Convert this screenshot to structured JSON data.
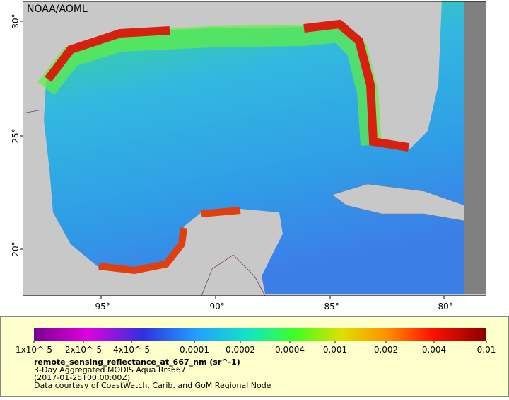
{
  "map": {
    "attribution": "NOAA/AOML",
    "lat_ticks": [
      "30°",
      "25°",
      "20°"
    ],
    "lon_ticks": [
      "-95°",
      "-90°",
      "-85°",
      "-80°"
    ]
  },
  "colorbar": {
    "labels": [
      "1x10^-5",
      "2x10^-5",
      "4x10^-5",
      "0.0001",
      "0.0002",
      "0.0004",
      "0.001",
      "0.002",
      "0.004",
      "0.01"
    ]
  },
  "legend": {
    "variable": "remote_sensing_reflectance_at_667_nm (sr^-1)",
    "description": "3-Day Aggregated MODIS Aqua Rrs667",
    "time": "(2017-01-25T00:00:00Z)",
    "credit": "Data courtesy of CoastWatch, Carib. and GoM Regional Node"
  }
}
